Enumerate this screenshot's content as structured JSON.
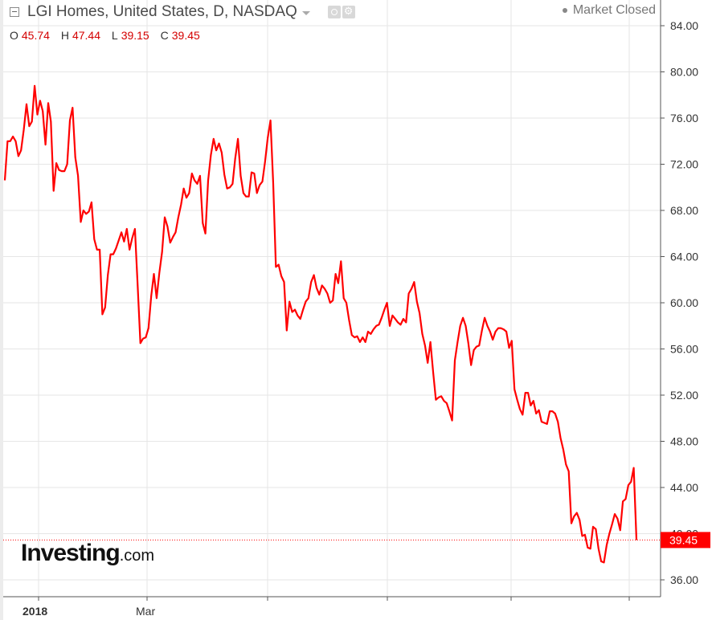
{
  "header": {
    "title": "LGI Homes, United States, D, NASDAQ",
    "market_status": "Market Closed",
    "ohlc": [
      {
        "key": "O",
        "value": "45.74"
      },
      {
        "key": "H",
        "value": "47.44"
      },
      {
        "key": "L",
        "value": "39.15"
      },
      {
        "key": "C",
        "value": "39.45"
      }
    ]
  },
  "logo": {
    "main": "Investing",
    "suffix": ".com"
  },
  "colors": {
    "line": "#ff0000",
    "grid": "#e6e6e6",
    "axis": "#555555",
    "last_badge": "#ff0000"
  },
  "chart_data": {
    "type": "line",
    "title": "LGI Homes, United States, D, NASDAQ",
    "xlabel": "",
    "ylabel": "",
    "ylim": [
      34.5,
      86
    ],
    "yticks": [
      "84.00",
      "80.00",
      "76.00",
      "72.00",
      "68.00",
      "64.00",
      "60.00",
      "56.00",
      "52.00",
      "48.00",
      "44.00",
      "40.00",
      "36.00"
    ],
    "ytick_values": [
      84,
      80,
      76,
      72,
      68,
      64,
      60,
      56,
      52,
      48,
      44,
      40,
      36
    ],
    "xticks": [
      "2018",
      "Mar",
      "",
      "",
      "",
      ""
    ],
    "grid": true,
    "last_value_label": "39.45",
    "last_value": 39.45,
    "series": [
      {
        "values": [
          70.6,
          74.0,
          74.0,
          74.4,
          74.0,
          72.7,
          73.2,
          75.0,
          77.2,
          75.3,
          75.7,
          78.8,
          76.3,
          77.5,
          76.6,
          73.7,
          77.3,
          75.7,
          69.7,
          72.1,
          71.5,
          71.4,
          71.4,
          72.0,
          75.8,
          76.9,
          72.6,
          71.0,
          67.0,
          68.0,
          67.7,
          67.9,
          68.7,
          65.5,
          64.6,
          64.6,
          59.0,
          59.6,
          62.4,
          64.2,
          64.2,
          64.7,
          65.4,
          66.1,
          65.3,
          66.4,
          64.6,
          65.6,
          66.4,
          61.5,
          56.5,
          56.9,
          57.0,
          57.8,
          60.6,
          62.5,
          60.4,
          62.6,
          64.4,
          67.4,
          66.6,
          65.2,
          65.7,
          66.1,
          67.4,
          68.5,
          69.9,
          69.1,
          69.5,
          71.2,
          70.6,
          70.3,
          71.0,
          66.9,
          66.0,
          70.6,
          72.8,
          74.2,
          73.2,
          73.8,
          73.0,
          71.1,
          69.9,
          70.0,
          70.3,
          72.5,
          74.2,
          71.0,
          69.5,
          69.2,
          69.2,
          71.3,
          71.2,
          69.5,
          70.2,
          70.5,
          72.2,
          74.3,
          75.8,
          70.3,
          63.1,
          63.3,
          62.3,
          61.8,
          57.6,
          60.1,
          59.2,
          59.4,
          58.9,
          58.6,
          59.4,
          60.1,
          60.4,
          61.8,
          62.4,
          61.3,
          60.7,
          61.5,
          61.2,
          60.8,
          60.0,
          60.2,
          62.5,
          61.7,
          63.6,
          60.4,
          60.0,
          58.5,
          57.2,
          57.0,
          57.1,
          56.6,
          57.0,
          56.6,
          57.5,
          57.3,
          57.7,
          58.0,
          58.1,
          58.7,
          59.4,
          60.0,
          58.0,
          58.9,
          58.6,
          58.3,
          58.1,
          58.6,
          58.3,
          60.8,
          61.2,
          61.8,
          60.1,
          59.1,
          57.3,
          56.3,
          54.8,
          56.6,
          54.0,
          51.6,
          51.8,
          51.9,
          51.5,
          51.3,
          50.6,
          49.8,
          55.0,
          56.6,
          58.0,
          58.7,
          58.0,
          56.5,
          54.6,
          55.9,
          56.2,
          56.3,
          57.6,
          58.7,
          58.0,
          57.5,
          56.8,
          57.5,
          57.8,
          57.8,
          57.7,
          57.5,
          56.1,
          56.7,
          52.5,
          51.6,
          50.8,
          50.3,
          52.2,
          52.2,
          51.1,
          51.5,
          50.4,
          50.7,
          49.7,
          49.6,
          49.5,
          50.6,
          50.6,
          50.4,
          49.7,
          48.3,
          47.3,
          46.0,
          45.4,
          40.9,
          41.5,
          41.8,
          41.2,
          39.8,
          39.9,
          38.8,
          38.7,
          40.6,
          40.4,
          38.7,
          37.6,
          37.5,
          39.0,
          40.0,
          40.8,
          41.7,
          41.3,
          40.3,
          42.8,
          43.0,
          44.2,
          44.5,
          45.7,
          39.45
        ]
      }
    ]
  }
}
